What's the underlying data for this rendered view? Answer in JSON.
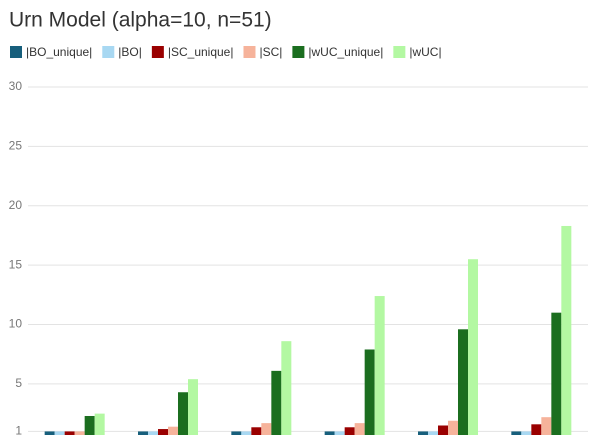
{
  "chart_data": {
    "type": "bar",
    "title": "Urn Model (alpha=10, n=51)",
    "categories": [
      null,
      null,
      null,
      null,
      null,
      null
    ],
    "series": [
      {
        "name": "|BO_unique|",
        "color": "#175f7c",
        "values": [
          1,
          1,
          1,
          1,
          1,
          1
        ]
      },
      {
        "name": "|BO|",
        "color": "#a8d8f2",
        "values": [
          1,
          1,
          1,
          1,
          1,
          1
        ]
      },
      {
        "name": "|SC_unique|",
        "color": "#9a0000",
        "values": [
          1,
          1.2,
          1.35,
          1.35,
          1.5,
          1.6
        ]
      },
      {
        "name": "|SC|",
        "color": "#f6b39b",
        "values": [
          1,
          1.4,
          1.7,
          1.7,
          1.9,
          2.2
        ]
      },
      {
        "name": "|wUC_unique|",
        "color": "#1b6e1f",
        "values": [
          2.3,
          4.3,
          6.1,
          7.9,
          9.6,
          11.0
        ]
      },
      {
        "name": "|wUC|",
        "color": "#b3f8a2",
        "values": [
          2.5,
          5.4,
          8.6,
          12.4,
          15.5,
          18.3
        ]
      }
    ],
    "ylim": [
      0.7,
      30
    ],
    "yticks": [
      1,
      5,
      10,
      15,
      20,
      25,
      30
    ],
    "grid": true
  }
}
